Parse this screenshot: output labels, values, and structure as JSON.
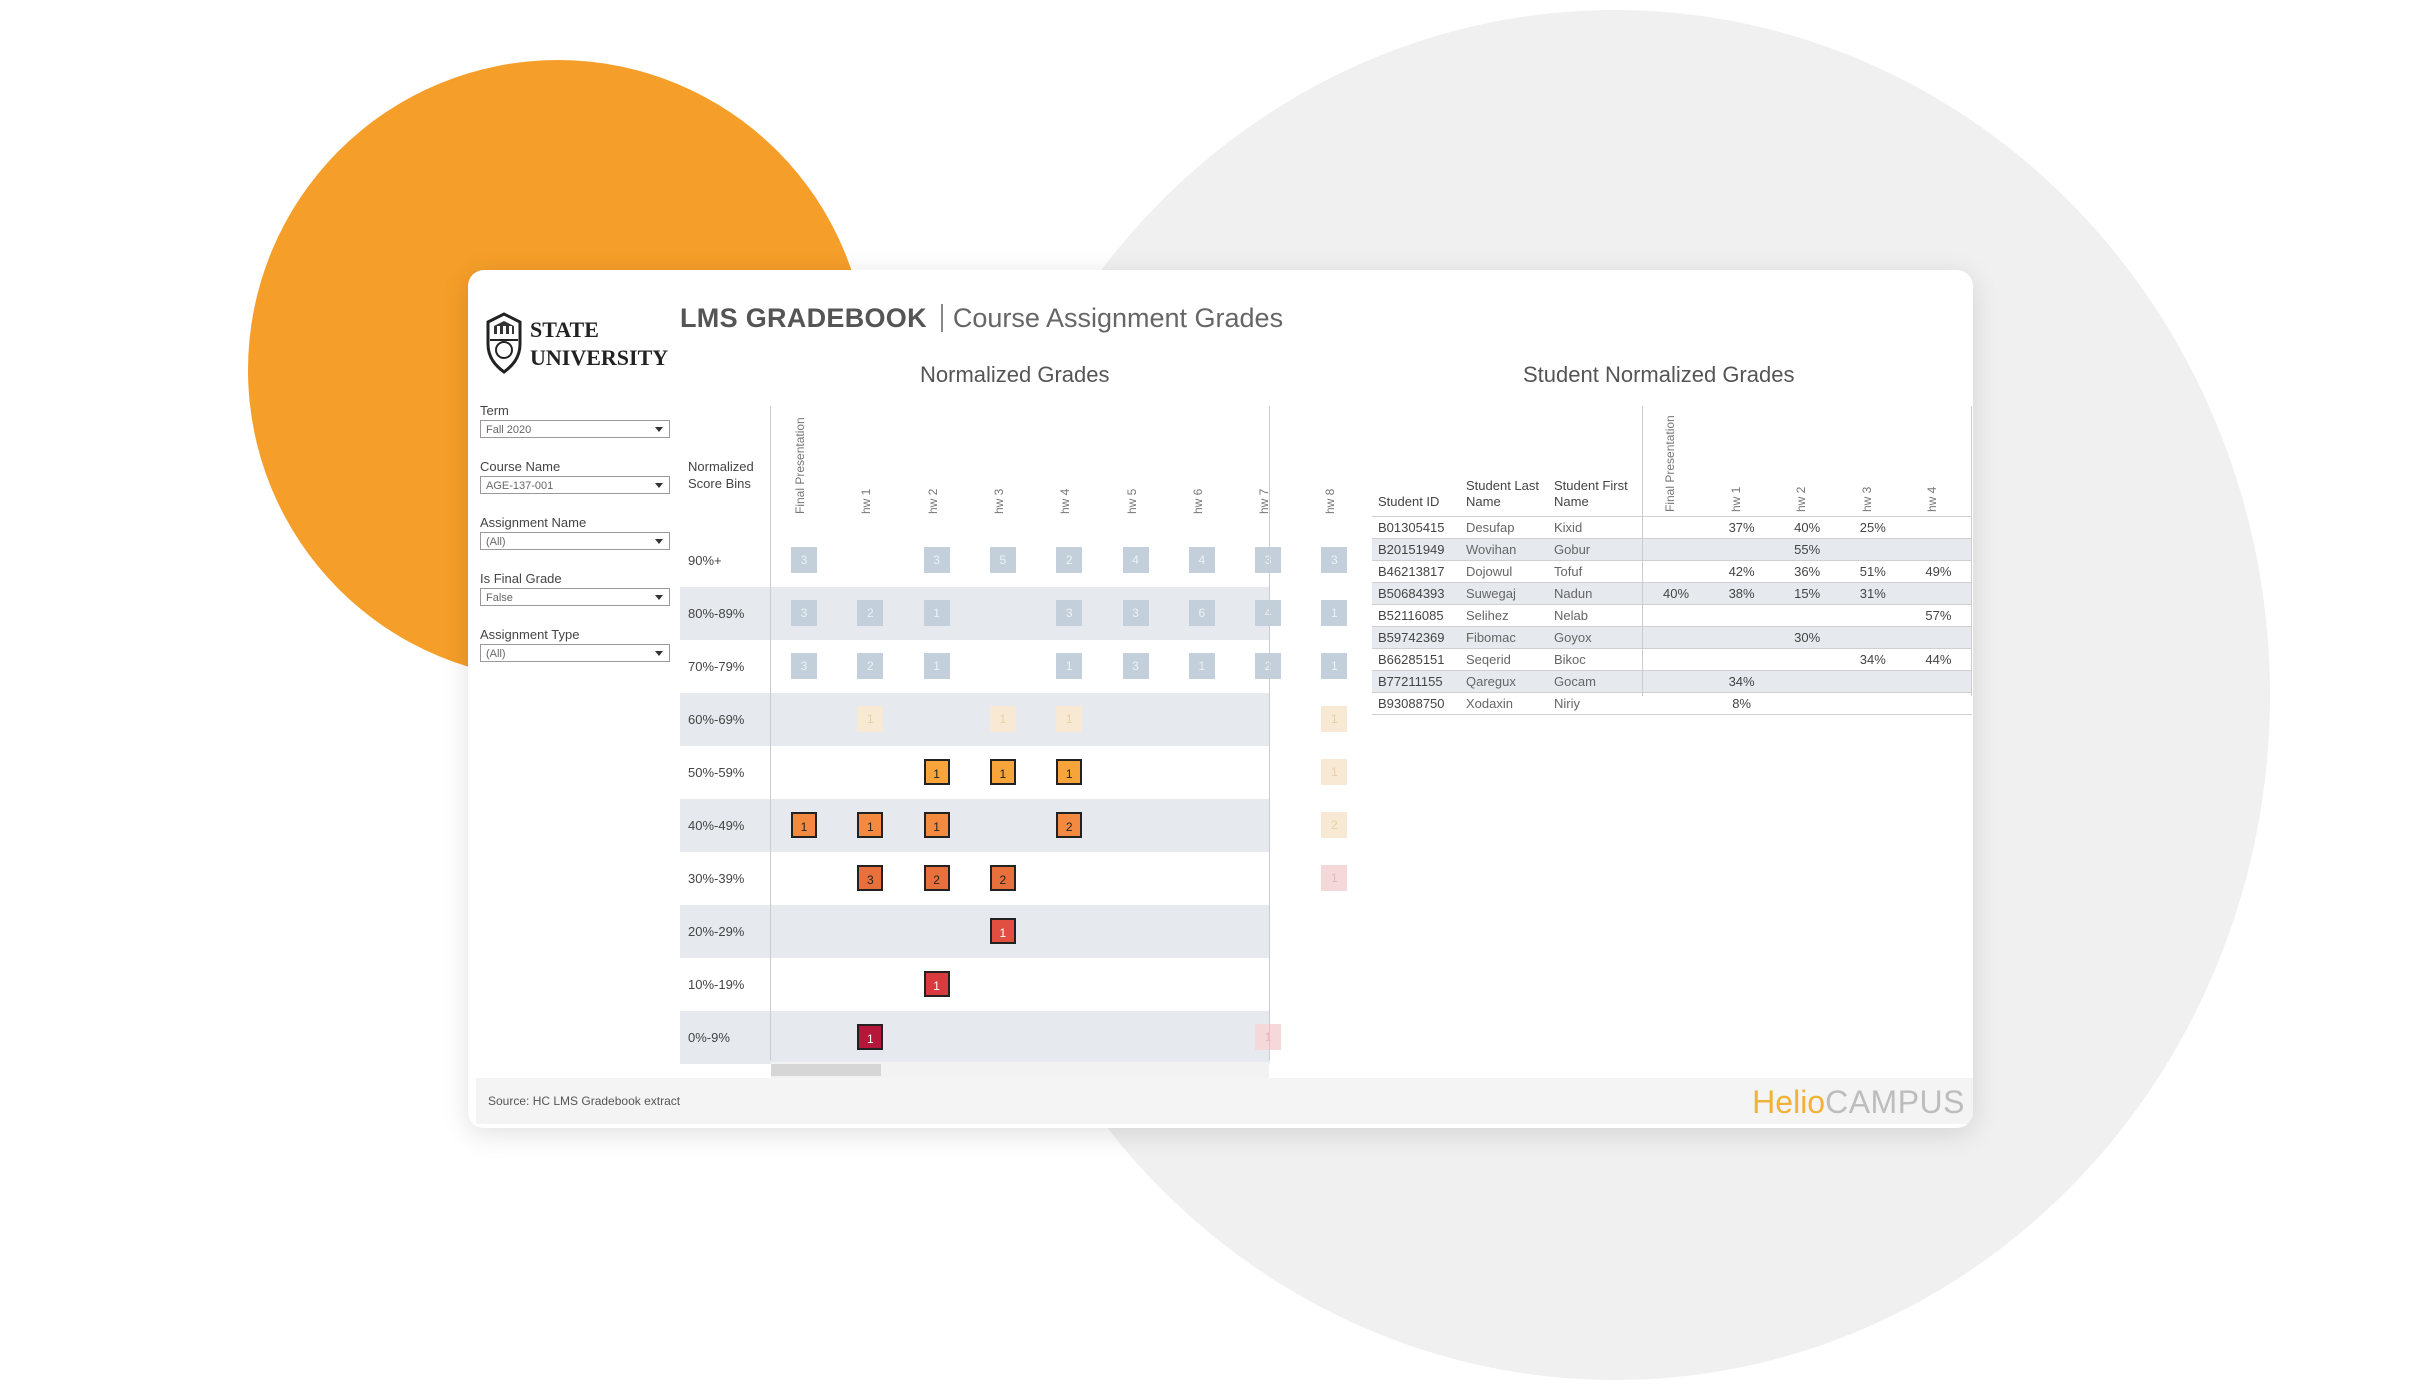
{
  "logo": {
    "line1": "STATE",
    "line2": "UNIVERSITY"
  },
  "header": {
    "title": "LMS GRADEBOOK",
    "subtitle": "Course Assignment Grades"
  },
  "sections": {
    "left": "Normalized Grades",
    "right": "Student Normalized Grades"
  },
  "filters": [
    {
      "label": "Term",
      "value": "Fall 2020"
    },
    {
      "label": "Course Name",
      "value": "AGE-137-001"
    },
    {
      "label": "Assignment Name",
      "value": "(All)"
    },
    {
      "label": "Is Final Grade",
      "value": "False"
    },
    {
      "label": "Assignment Type",
      "value": "(All)"
    }
  ],
  "heatmap": {
    "row_header": "Normalized Score Bins",
    "columns": [
      "Final Presentation",
      "hw 1",
      "hw 2",
      "hw 3",
      "hw 4",
      "hw 5",
      "hw 6",
      "hw 7",
      "hw 8"
    ],
    "rows": [
      {
        "bin": "90%+",
        "cells": [
          3,
          null,
          3,
          5,
          2,
          4,
          4,
          3,
          3
        ],
        "style": [
          "g",
          null,
          "g",
          "g",
          "g",
          "g",
          "g",
          "g",
          "g"
        ]
      },
      {
        "bin": "80%-89%",
        "cells": [
          3,
          2,
          1,
          null,
          3,
          3,
          6,
          4,
          1
        ],
        "style": [
          "g",
          "g",
          "g",
          null,
          "g",
          "g",
          "g",
          "g",
          "g"
        ]
      },
      {
        "bin": "70%-79%",
        "cells": [
          3,
          2,
          1,
          null,
          1,
          3,
          1,
          2,
          1
        ],
        "style": [
          "g",
          "g",
          "g",
          null,
          "g",
          "g",
          "g",
          "g",
          "g"
        ]
      },
      {
        "bin": "60%-69%",
        "cells": [
          null,
          1,
          null,
          1,
          1,
          null,
          null,
          null,
          1
        ],
        "style": [
          null,
          "p",
          null,
          "p",
          "p",
          null,
          null,
          null,
          "p"
        ]
      },
      {
        "bin": "50%-59%",
        "cells": [
          null,
          null,
          1,
          1,
          1,
          null,
          null,
          null,
          1
        ],
        "style": [
          null,
          null,
          "#f7a43b",
          "#f7a43b",
          "#f7a43b",
          null,
          null,
          null,
          "p"
        ]
      },
      {
        "bin": "40%-49%",
        "cells": [
          1,
          1,
          1,
          null,
          2,
          null,
          null,
          null,
          2
        ],
        "style": [
          "#f38a3f",
          "#f38a3f",
          "#f38a3f",
          null,
          "#f38a3f",
          null,
          null,
          null,
          "p"
        ]
      },
      {
        "bin": "30%-39%",
        "cells": [
          null,
          3,
          2,
          2,
          null,
          null,
          null,
          null,
          1
        ],
        "style": [
          null,
          "#e8703c",
          "#e8703c",
          "#e8703c",
          null,
          null,
          null,
          null,
          "k"
        ]
      },
      {
        "bin": "20%-29%",
        "cells": [
          null,
          null,
          null,
          1,
          null,
          null,
          null,
          null,
          null
        ],
        "style": [
          null,
          null,
          null,
          "#e04f3f",
          null,
          null,
          null,
          null,
          null
        ]
      },
      {
        "bin": "10%-19%",
        "cells": [
          null,
          null,
          1,
          null,
          null,
          null,
          null,
          null,
          null
        ],
        "style": [
          null,
          null,
          "#d93a3e",
          null,
          null,
          null,
          null,
          null,
          null
        ]
      },
      {
        "bin": "0%-9%",
        "cells": [
          null,
          1,
          null,
          null,
          null,
          null,
          null,
          1,
          null
        ],
        "style": [
          null,
          "#b5163a",
          null,
          null,
          null,
          null,
          null,
          "k",
          null
        ]
      }
    ]
  },
  "student_table": {
    "headers": {
      "id": "Student ID",
      "last": "Student Last Name",
      "first": "Student First Name"
    },
    "columns": [
      "Final Presentation",
      "hw 1",
      "hw 2",
      "hw 3",
      "hw 4"
    ],
    "rows": [
      {
        "id": "B01305415",
        "last": "Desufap",
        "first": "Kixid",
        "grades": [
          "",
          "37%",
          "40%",
          "25%",
          ""
        ]
      },
      {
        "id": "B20151949",
        "last": "Wovihan",
        "first": "Gobur",
        "grades": [
          "",
          "",
          "55%",
          "",
          ""
        ]
      },
      {
        "id": "B46213817",
        "last": "Dojowul",
        "first": "Tofuf",
        "grades": [
          "",
          "42%",
          "36%",
          "51%",
          "49%"
        ]
      },
      {
        "id": "B50684393",
        "last": "Suwegaj",
        "first": "Nadun",
        "grades": [
          "40%",
          "38%",
          "15%",
          "31%",
          ""
        ]
      },
      {
        "id": "B52116085",
        "last": "Selihez",
        "first": "Nelab",
        "grades": [
          "",
          "",
          "",
          "",
          "57%"
        ]
      },
      {
        "id": "B59742369",
        "last": "Fibomac",
        "first": "Goyox",
        "grades": [
          "",
          "",
          "30%",
          "",
          ""
        ]
      },
      {
        "id": "B66285151",
        "last": "Seqerid",
        "first": "Bikoc",
        "grades": [
          "",
          "",
          "",
          "34%",
          "44%"
        ]
      },
      {
        "id": "B77211155",
        "last": "Qaregux",
        "first": "Gocam",
        "grades": [
          "",
          "34%",
          "",
          "",
          ""
        ]
      },
      {
        "id": "B93088750",
        "last": "Xodaxin",
        "first": "Niriy",
        "grades": [
          "",
          "8%",
          "",
          "",
          ""
        ]
      }
    ]
  },
  "footer": {
    "source": "Source: HC LMS Gradebook extract",
    "brand_a": "Helio",
    "brand_b": "CAMPUS"
  },
  "colors": {
    "accent": "#f59e29",
    "shade": "#e6eaee"
  }
}
